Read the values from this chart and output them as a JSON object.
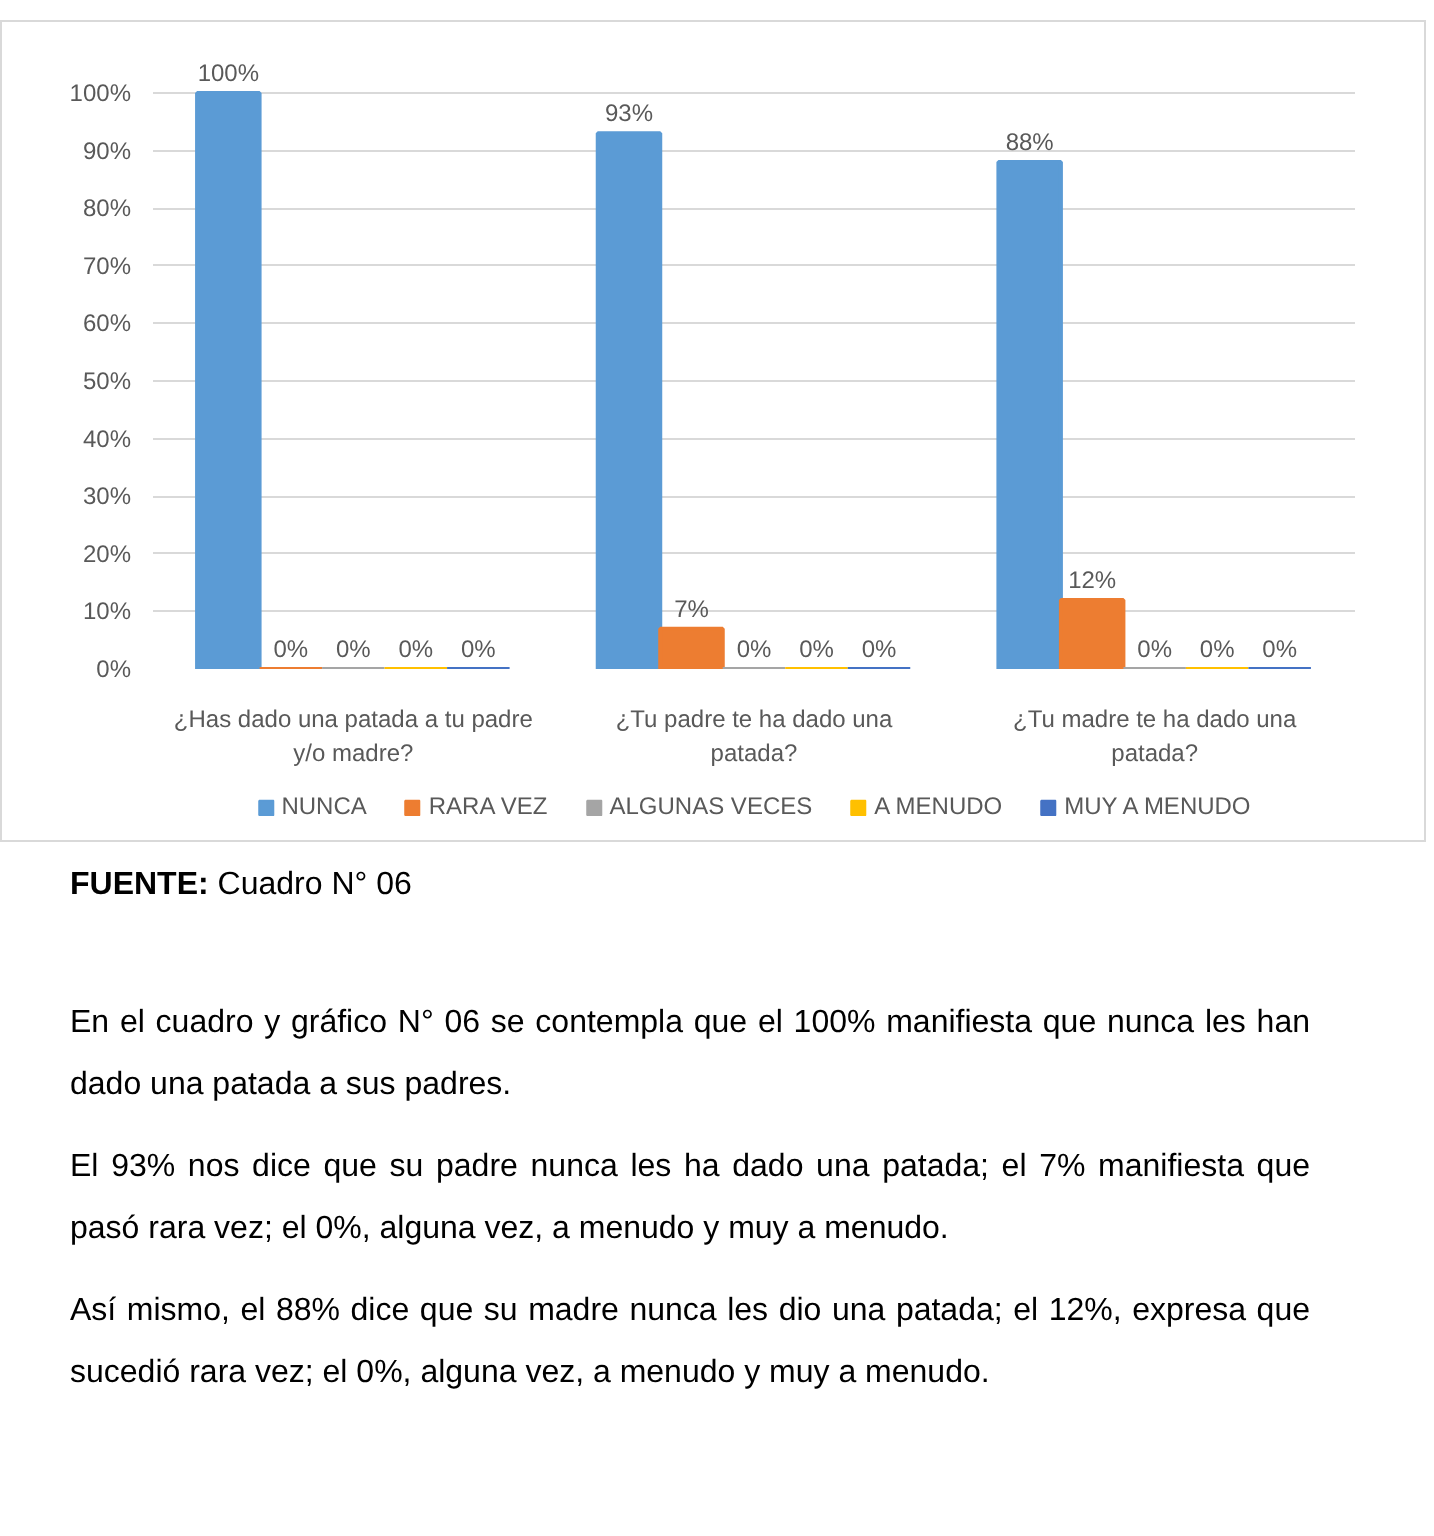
{
  "chart_data": {
    "type": "bar",
    "categories": [
      "¿Has dado una patada a tu padre y/o madre?",
      "¿Tu padre te ha dado una patada?",
      "¿Tu madre te ha dado una patada?"
    ],
    "series": [
      {
        "name": "NUNCA",
        "color": "#5b9bd5",
        "values": [
          100,
          93,
          88
        ],
        "value_labels": [
          "100%",
          "93%",
          "88%"
        ]
      },
      {
        "name": "RARA VEZ",
        "color": "#ed7d31",
        "values": [
          0,
          7,
          12
        ],
        "value_labels": [
          "0%",
          "7%",
          "12%"
        ]
      },
      {
        "name": "ALGUNAS VECES",
        "color": "#a5a5a5",
        "values": [
          0,
          0,
          0
        ],
        "value_labels": [
          "0%",
          "0%",
          "0%"
        ]
      },
      {
        "name": "A MENUDO",
        "color": "#ffc000",
        "values": [
          0,
          0,
          0
        ],
        "value_labels": [
          "0%",
          "0%",
          "0%"
        ]
      },
      {
        "name": "MUY A MENUDO",
        "color": "#4472c4",
        "values": [
          0,
          0,
          0
        ],
        "value_labels": [
          "0%",
          "0%",
          "0%"
        ]
      }
    ],
    "ylim": [
      0,
      100
    ],
    "yticks": [
      {
        "value": 0,
        "label": "0%"
      },
      {
        "value": 10,
        "label": "10%"
      },
      {
        "value": 20,
        "label": "20%"
      },
      {
        "value": 30,
        "label": "30%"
      },
      {
        "value": 40,
        "label": "40%"
      },
      {
        "value": 50,
        "label": "50%"
      },
      {
        "value": 60,
        "label": "60%"
      },
      {
        "value": 70,
        "label": "70%"
      },
      {
        "value": 80,
        "label": "80%"
      },
      {
        "value": 90,
        "label": "90%"
      },
      {
        "value": 100,
        "label": "100%"
      }
    ],
    "grid": "y",
    "legend": "bottom",
    "annotations": [
      "FUENTE: Cuadro N° 06",
      "En el cuadro y gráfico N° 06 se contempla que el 100% manifiesta que nunca les han dado una patada a sus padres.",
      "El 93% nos dice que su padre nunca les ha dado una patada; el 7% manifiesta que pasó rara vez; el 0%, alguna vez, a menudo y muy a menudo.",
      "Así mismo, el 88% dice que su madre nunca les dio una patada; el 12%, expresa que sucedió rara vez; el 0%, alguna vez, a menudo y muy a menudo."
    ]
  }
}
